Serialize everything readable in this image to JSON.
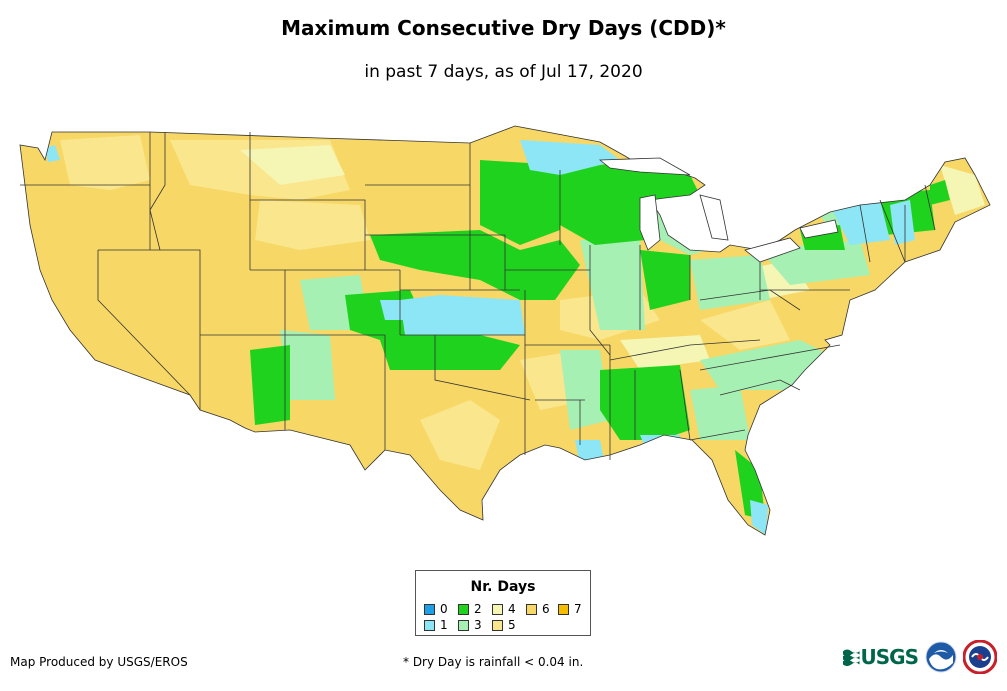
{
  "title": "Maximum Consecutive Dry Days (CDD)*",
  "subtitle": "in past 7 days, as of Jul 17, 2020",
  "legend": {
    "title": "Nr. Days",
    "items": [
      {
        "label": "0",
        "color": "#1f9fe6"
      },
      {
        "label": "1",
        "color": "#8de6f5"
      },
      {
        "label": "2",
        "color": "#1ed21e"
      },
      {
        "label": "3",
        "color": "#a6f0b4"
      },
      {
        "label": "4",
        "color": "#f5f5b4"
      },
      {
        "label": "5",
        "color": "#fae68c"
      },
      {
        "label": "6",
        "color": "#f7d766"
      },
      {
        "label": "7",
        "color": "#f5bc00"
      }
    ]
  },
  "credit": "Map Produced by USGS/EROS",
  "footnote": "* Dry Day is rainfall < 0.04 in.",
  "logos": {
    "usgs": "USGS",
    "noaa": "noaa-logo",
    "nws": "nws-logo"
  },
  "map": {
    "base_color": "#f7d766",
    "state_border_color": "#333333"
  }
}
